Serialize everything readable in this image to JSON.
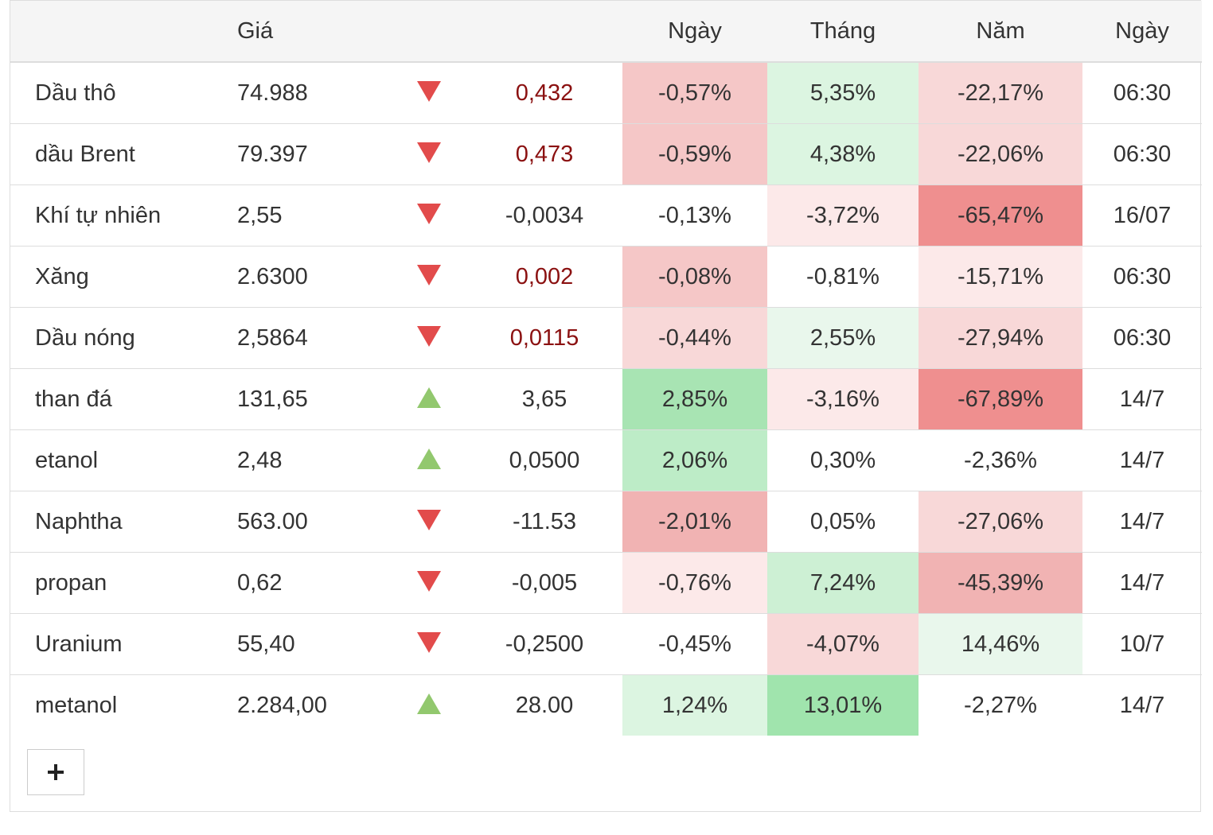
{
  "header": {
    "col_name": "",
    "col_price": "Giá",
    "col_dir": "",
    "col_change": "",
    "col_day": "Ngày",
    "col_month": "Tháng",
    "col_year": "Năm",
    "col_date": "Ngày"
  },
  "rows": [
    {
      "name": "Dầu thô",
      "price": "74.988",
      "direction": "down",
      "change": "0,432",
      "change_color": "#8b1111",
      "day": "-0,57%",
      "day_bg": "#f5c7c7",
      "month": "5,35%",
      "month_bg": "#dcf5e1",
      "year": "-22,17%",
      "year_bg": "#f8d8d8",
      "date": "06:30"
    },
    {
      "name": "dầu Brent",
      "price": "79.397",
      "direction": "down",
      "change": "0,473",
      "change_color": "#8b1111",
      "day": "-0,59%",
      "day_bg": "#f5c7c7",
      "month": "4,38%",
      "month_bg": "#dcf5e1",
      "year": "-22,06%",
      "year_bg": "#f8d8d8",
      "date": "06:30"
    },
    {
      "name": "Khí tự nhiên",
      "price": "2,55",
      "direction": "down",
      "change": "-0,0034",
      "change_color": "#333333",
      "day": "-0,13%",
      "day_bg": "#ffffff",
      "month": "-3,72%",
      "month_bg": "#fce9e9",
      "year": "-65,47%",
      "year_bg": "#ef8f8f",
      "date": "16/07"
    },
    {
      "name": "Xăng",
      "price": "2.6300",
      "direction": "down",
      "change": "0,002",
      "change_color": "#8b1111",
      "day": "-0,08%",
      "day_bg": "#f5c7c7",
      "month": "-0,81%",
      "month_bg": "#ffffff",
      "year": "-15,71%",
      "year_bg": "#fce9e9",
      "date": "06:30"
    },
    {
      "name": "Dầu nóng",
      "price": "2,5864",
      "direction": "down",
      "change": "0,0115",
      "change_color": "#8b1111",
      "day": "-0,44%",
      "day_bg": "#f8d8d8",
      "month": "2,55%",
      "month_bg": "#e9f7ec",
      "year": "-27,94%",
      "year_bg": "#f8d8d8",
      "date": "06:30"
    },
    {
      "name": "than đá",
      "price": "131,65",
      "direction": "up",
      "change": "3,65",
      "change_color": "#333333",
      "day": "2,85%",
      "day_bg": "#a8e4b3",
      "month": "-3,16%",
      "month_bg": "#fce9e9",
      "year": "-67,89%",
      "year_bg": "#ef8f8f",
      "date": "14/7"
    },
    {
      "name": "etanol",
      "price": "2,48",
      "direction": "up",
      "change": "0,0500",
      "change_color": "#333333",
      "day": "2,06%",
      "day_bg": "#bdecc7",
      "month": "0,30%",
      "month_bg": "#ffffff",
      "year": "-2,36%",
      "year_bg": "#ffffff",
      "date": "14/7"
    },
    {
      "name": "Naphtha",
      "price": "563.00",
      "direction": "down",
      "change": "-11.53",
      "change_color": "#333333",
      "day": "-2,01%",
      "day_bg": "#f1b3b3",
      "month": "0,05%",
      "month_bg": "#ffffff",
      "year": "-27,06%",
      "year_bg": "#f8d8d8",
      "date": "14/7"
    },
    {
      "name": "propan",
      "price": "0,62",
      "direction": "down",
      "change": "-0,005",
      "change_color": "#333333",
      "day": "-0,76%",
      "day_bg": "#fce9e9",
      "month": "7,24%",
      "month_bg": "#cdf0d4",
      "year": "-45,39%",
      "year_bg": "#f1b3b3",
      "date": "14/7"
    },
    {
      "name": "Uranium",
      "price": "55,40",
      "direction": "down",
      "change": "-0,2500",
      "change_color": "#333333",
      "day": "-0,45%",
      "day_bg": "#ffffff",
      "month": "-4,07%",
      "month_bg": "#f8d8d8",
      "year": "14,46%",
      "year_bg": "#e9f7ec",
      "date": "10/7"
    },
    {
      "name": "metanol",
      "price": "2.284,00",
      "direction": "up",
      "change": "28.00",
      "change_color": "#333333",
      "day": "1,24%",
      "day_bg": "#dcf5e1",
      "month": "13,01%",
      "month_bg": "#a0e4ad",
      "year": "-2,27%",
      "year_bg": "#ffffff",
      "date": "14/7"
    }
  ],
  "footer": {
    "add_button_icon": "plus-icon"
  }
}
